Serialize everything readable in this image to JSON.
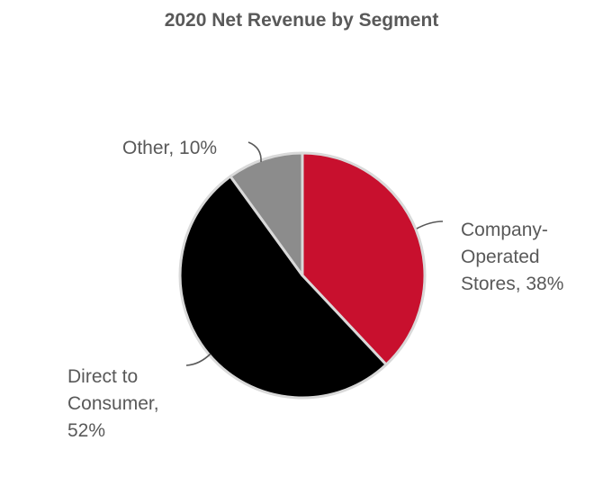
{
  "chart_data": {
    "type": "pie",
    "title": "2020 Net Revenue by Segment",
    "slices": [
      {
        "name": "Company-Operated Stores",
        "value": 38,
        "color": "#c8102e",
        "label_lines": [
          "Company-",
          "Operated",
          "Stores, 38%"
        ]
      },
      {
        "name": "Direct to Consumer",
        "value": 52,
        "color": "#000000",
        "label_lines": [
          "Direct to",
          "Consumer,",
          "52%"
        ]
      },
      {
        "name": "Other",
        "value": 10,
        "color": "#8c8c8c",
        "label_lines": [
          "Other, 10%"
        ]
      }
    ],
    "start_angle_deg": 0,
    "direction": "clockwise",
    "legend": "none"
  }
}
